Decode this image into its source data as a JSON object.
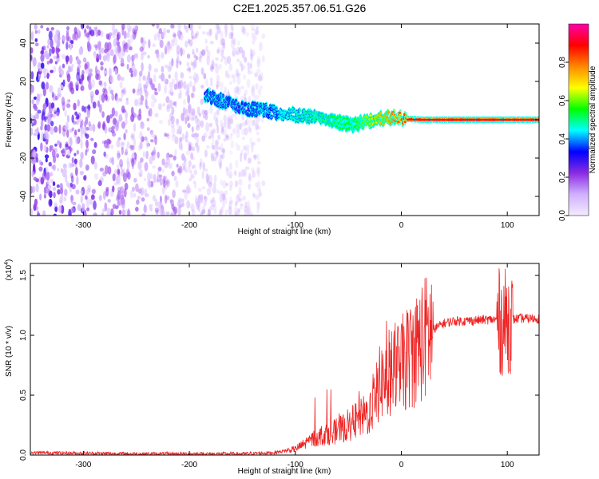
{
  "title": "C2E1.2025.357.06.51.G26",
  "colors": {
    "snr_line": "#ee2222",
    "spectrum_noise": "#8a2be2",
    "background": "#ffffff"
  },
  "chart_data": [
    {
      "type": "heatmap",
      "title": "C2E1.2025.357.06.51.G26",
      "xlabel": "Height of straight line (km)",
      "ylabel": "Frequency (Hz)",
      "xlim": [
        -350,
        130
      ],
      "ylim": [
        -50,
        50
      ],
      "x_ticks": [
        -300,
        -200,
        -100,
        0,
        100
      ],
      "x_tick_labels": [
        "-300",
        "-200",
        "-100",
        "0",
        "100"
      ],
      "y_ticks": [
        -40,
        -20,
        0,
        20,
        40
      ],
      "y_tick_labels": [
        "-40",
        "-20",
        "0",
        "20",
        "40"
      ],
      "colorbar": {
        "label": "Normalized spectral amplitude",
        "range": [
          0.0,
          1.0
        ],
        "ticks": [
          0.0,
          0.2,
          0.4,
          0.6,
          0.8
        ],
        "tick_labels": [
          "0.0",
          "0.2",
          "0.4",
          "0.6",
          "0.8"
        ],
        "colormap": [
          "#f4ecff",
          "#d0b0ff",
          "#8a2be2",
          "#0000ff",
          "#00ffff",
          "#00ff00",
          "#ffff00",
          "#ff8800",
          "#ff0000",
          "#ff00aa"
        ]
      },
      "signal_track": {
        "x": [
          -185,
          -170,
          -150,
          -130,
          -110,
          -90,
          -75,
          -60,
          -45,
          -35,
          -25,
          -15,
          -5,
          5,
          20,
          60,
          95,
          100,
          130
        ],
        "freq_hz": [
          13,
          10,
          6,
          5,
          3,
          2,
          1.5,
          -1,
          -3,
          -1,
          0,
          1,
          1,
          0.5,
          0,
          0,
          0,
          0,
          0
        ],
        "amplitude": [
          0.35,
          0.4,
          0.35,
          0.4,
          0.45,
          0.5,
          0.5,
          0.55,
          0.55,
          0.6,
          0.7,
          0.75,
          0.8,
          0.85,
          0.9,
          0.9,
          0.9,
          0.85,
          0.9
        ]
      },
      "noise_region_x": [
        -350,
        -130
      ]
    },
    {
      "type": "line",
      "xlabel": "Height of straight line (km)",
      "ylabel": "SNR (10 * v/v)",
      "y_scale_label": "(x10",
      "y_scale_exponent": "4",
      "y_scale_suffix": ")",
      "xlim": [
        -350,
        130
      ],
      "ylim": [
        0.0,
        1.6
      ],
      "x_ticks": [
        -300,
        -200,
        -100,
        0,
        100
      ],
      "x_tick_labels": [
        "-300",
        "-200",
        "-100",
        "0",
        "100"
      ],
      "y_ticks": [
        0.0,
        0.5,
        1.0,
        1.5
      ],
      "y_tick_labels": [
        "0.0",
        "0.5",
        "1.0",
        "1.5"
      ],
      "series": [
        {
          "name": "SNR",
          "x": [
            -350,
            -300,
            -250,
            -200,
            -150,
            -120,
            -100,
            -90,
            -80,
            -70,
            -60,
            -50,
            -40,
            -30,
            -25,
            -20,
            -10,
            0,
            10,
            20,
            30,
            40,
            50,
            60,
            80,
            90,
            95,
            100,
            105,
            110,
            130
          ],
          "y": [
            0.02,
            0.015,
            0.01,
            0.01,
            0.01,
            0.02,
            0.05,
            0.1,
            0.15,
            0.18,
            0.2,
            0.25,
            0.3,
            0.35,
            0.5,
            0.6,
            0.7,
            0.75,
            0.85,
            0.95,
            1.05,
            1.1,
            1.12,
            1.12,
            1.13,
            1.13,
            1.1,
            1.12,
            1.13,
            1.14,
            1.14
          ]
        }
      ]
    }
  ]
}
